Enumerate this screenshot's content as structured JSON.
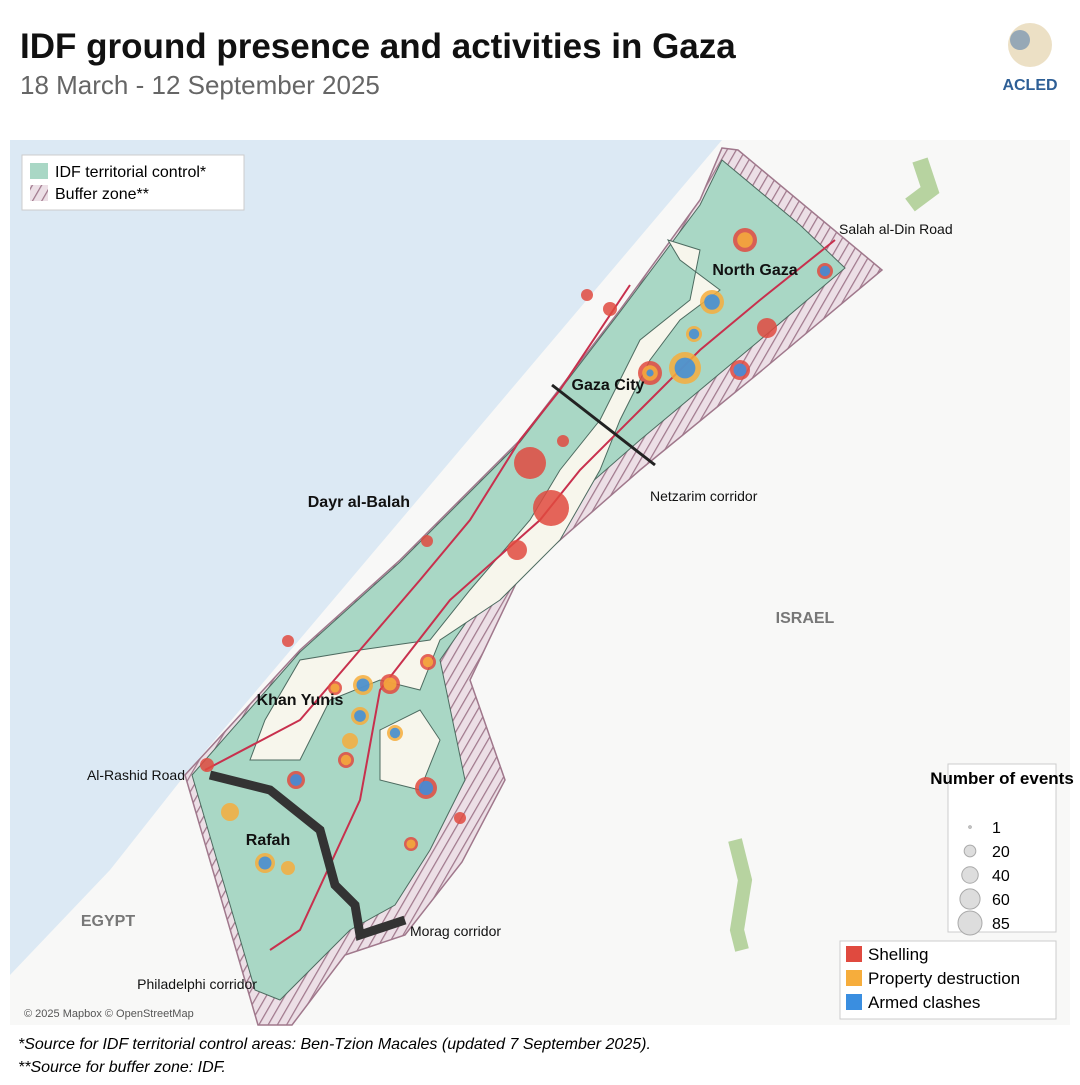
{
  "header": {
    "title": "IDF ground presence and activities in Gaza",
    "subtitle": "18 March - 12 September 2025",
    "logo": "ACLED"
  },
  "map": {
    "places": [
      "North Gaza",
      "Gaza City",
      "Dayr al-Balah",
      "Khan Yunis",
      "Rafah",
      "ISRAEL",
      "EGYPT"
    ],
    "roads": [
      "Salah al-Din Road",
      "Netzarim corridor",
      "Al-Rashid Road",
      "Morag corridor",
      "Philadelphi corridor"
    ],
    "attribution": "© 2025 Mapbox © OpenStreetMap"
  },
  "legend_areas": [
    {
      "label": "IDF territorial control*",
      "color": "#a9d7c5"
    },
    {
      "label": "Buffer zone**",
      "color": "#a88b9a"
    }
  ],
  "legend_size": {
    "title": "Number of events",
    "values": [
      1,
      20,
      40,
      60,
      85
    ]
  },
  "legend_types": [
    {
      "label": "Shelling",
      "color": "#e04a3f"
    },
    {
      "label": "Property destruction",
      "color": "#f6ad3c"
    },
    {
      "label": "Armed clashes",
      "color": "#3a8ee0"
    }
  ],
  "footnotes": [
    "*Source for IDF territorial control areas: Ben-Tzion Macales (updated 7 September 2025).",
    "**Source for buffer zone: IDF."
  ]
}
